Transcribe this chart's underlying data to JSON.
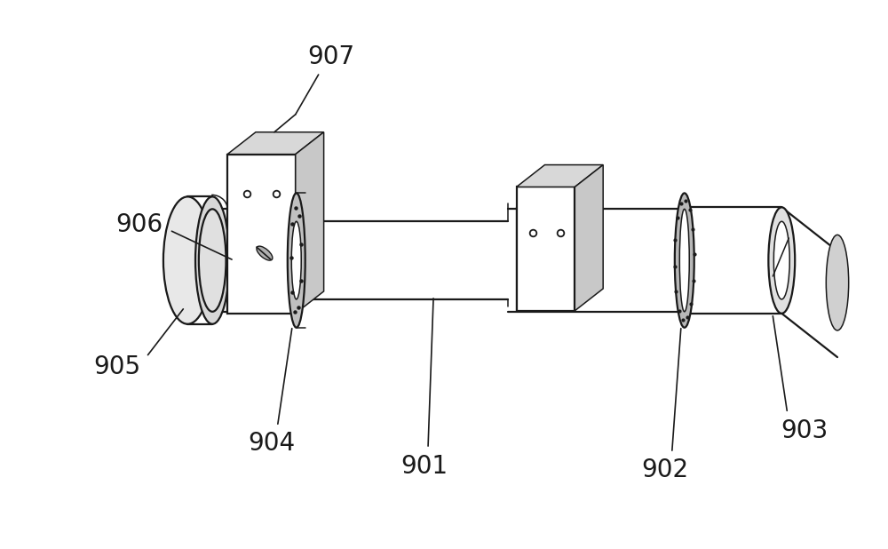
{
  "background_color": "#ffffff",
  "line_color": "#1a1a1a",
  "fig_width": 10.0,
  "fig_height": 6.18,
  "label_fontsize": 20,
  "label_color": "#1a1a1a",
  "lw_main": 1.6,
  "lw_thin": 1.1
}
